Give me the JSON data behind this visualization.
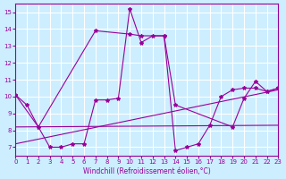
{
  "background_color": "#cceeff",
  "grid_color": "#ffffff",
  "line_color": "#990099",
  "xlabel": "Windchill (Refroidissement éolien,°C)",
  "xlim": [
    0,
    23
  ],
  "ylim": [
    6.5,
    15.5
  ],
  "yticks": [
    7,
    8,
    9,
    10,
    11,
    12,
    13,
    14,
    15
  ],
  "xticks": [
    0,
    1,
    2,
    3,
    4,
    5,
    6,
    7,
    8,
    9,
    10,
    11,
    12,
    13,
    14,
    15,
    16,
    17,
    18,
    19,
    20,
    21,
    22,
    23
  ],
  "line1": {
    "x": [
      0,
      1,
      2,
      3,
      4,
      5,
      6,
      7,
      8,
      9,
      10,
      11,
      12,
      13,
      14,
      15,
      16,
      17,
      18,
      19,
      20,
      21,
      22,
      23
    ],
    "y": [
      10.1,
      9.5,
      8.2,
      7.0,
      7.0,
      7.2,
      7.2,
      9.8,
      9.8,
      9.9,
      15.2,
      13.2,
      13.6,
      13.6,
      6.8,
      7.0,
      7.2,
      8.3,
      10.0,
      10.4,
      10.5,
      10.5,
      10.3,
      10.5
    ]
  },
  "line2": {
    "x": [
      0,
      2,
      7,
      10,
      11,
      13,
      14,
      19,
      20,
      21,
      22,
      23
    ],
    "y": [
      10.1,
      8.2,
      13.9,
      13.7,
      13.6,
      13.6,
      9.5,
      8.2,
      9.9,
      10.9,
      10.3,
      10.5
    ]
  },
  "line3_straight": {
    "x": [
      0,
      23
    ],
    "y": [
      8.2,
      8.3
    ]
  },
  "line4_diag": {
    "x": [
      0,
      23
    ],
    "y": [
      7.2,
      10.4
    ]
  }
}
